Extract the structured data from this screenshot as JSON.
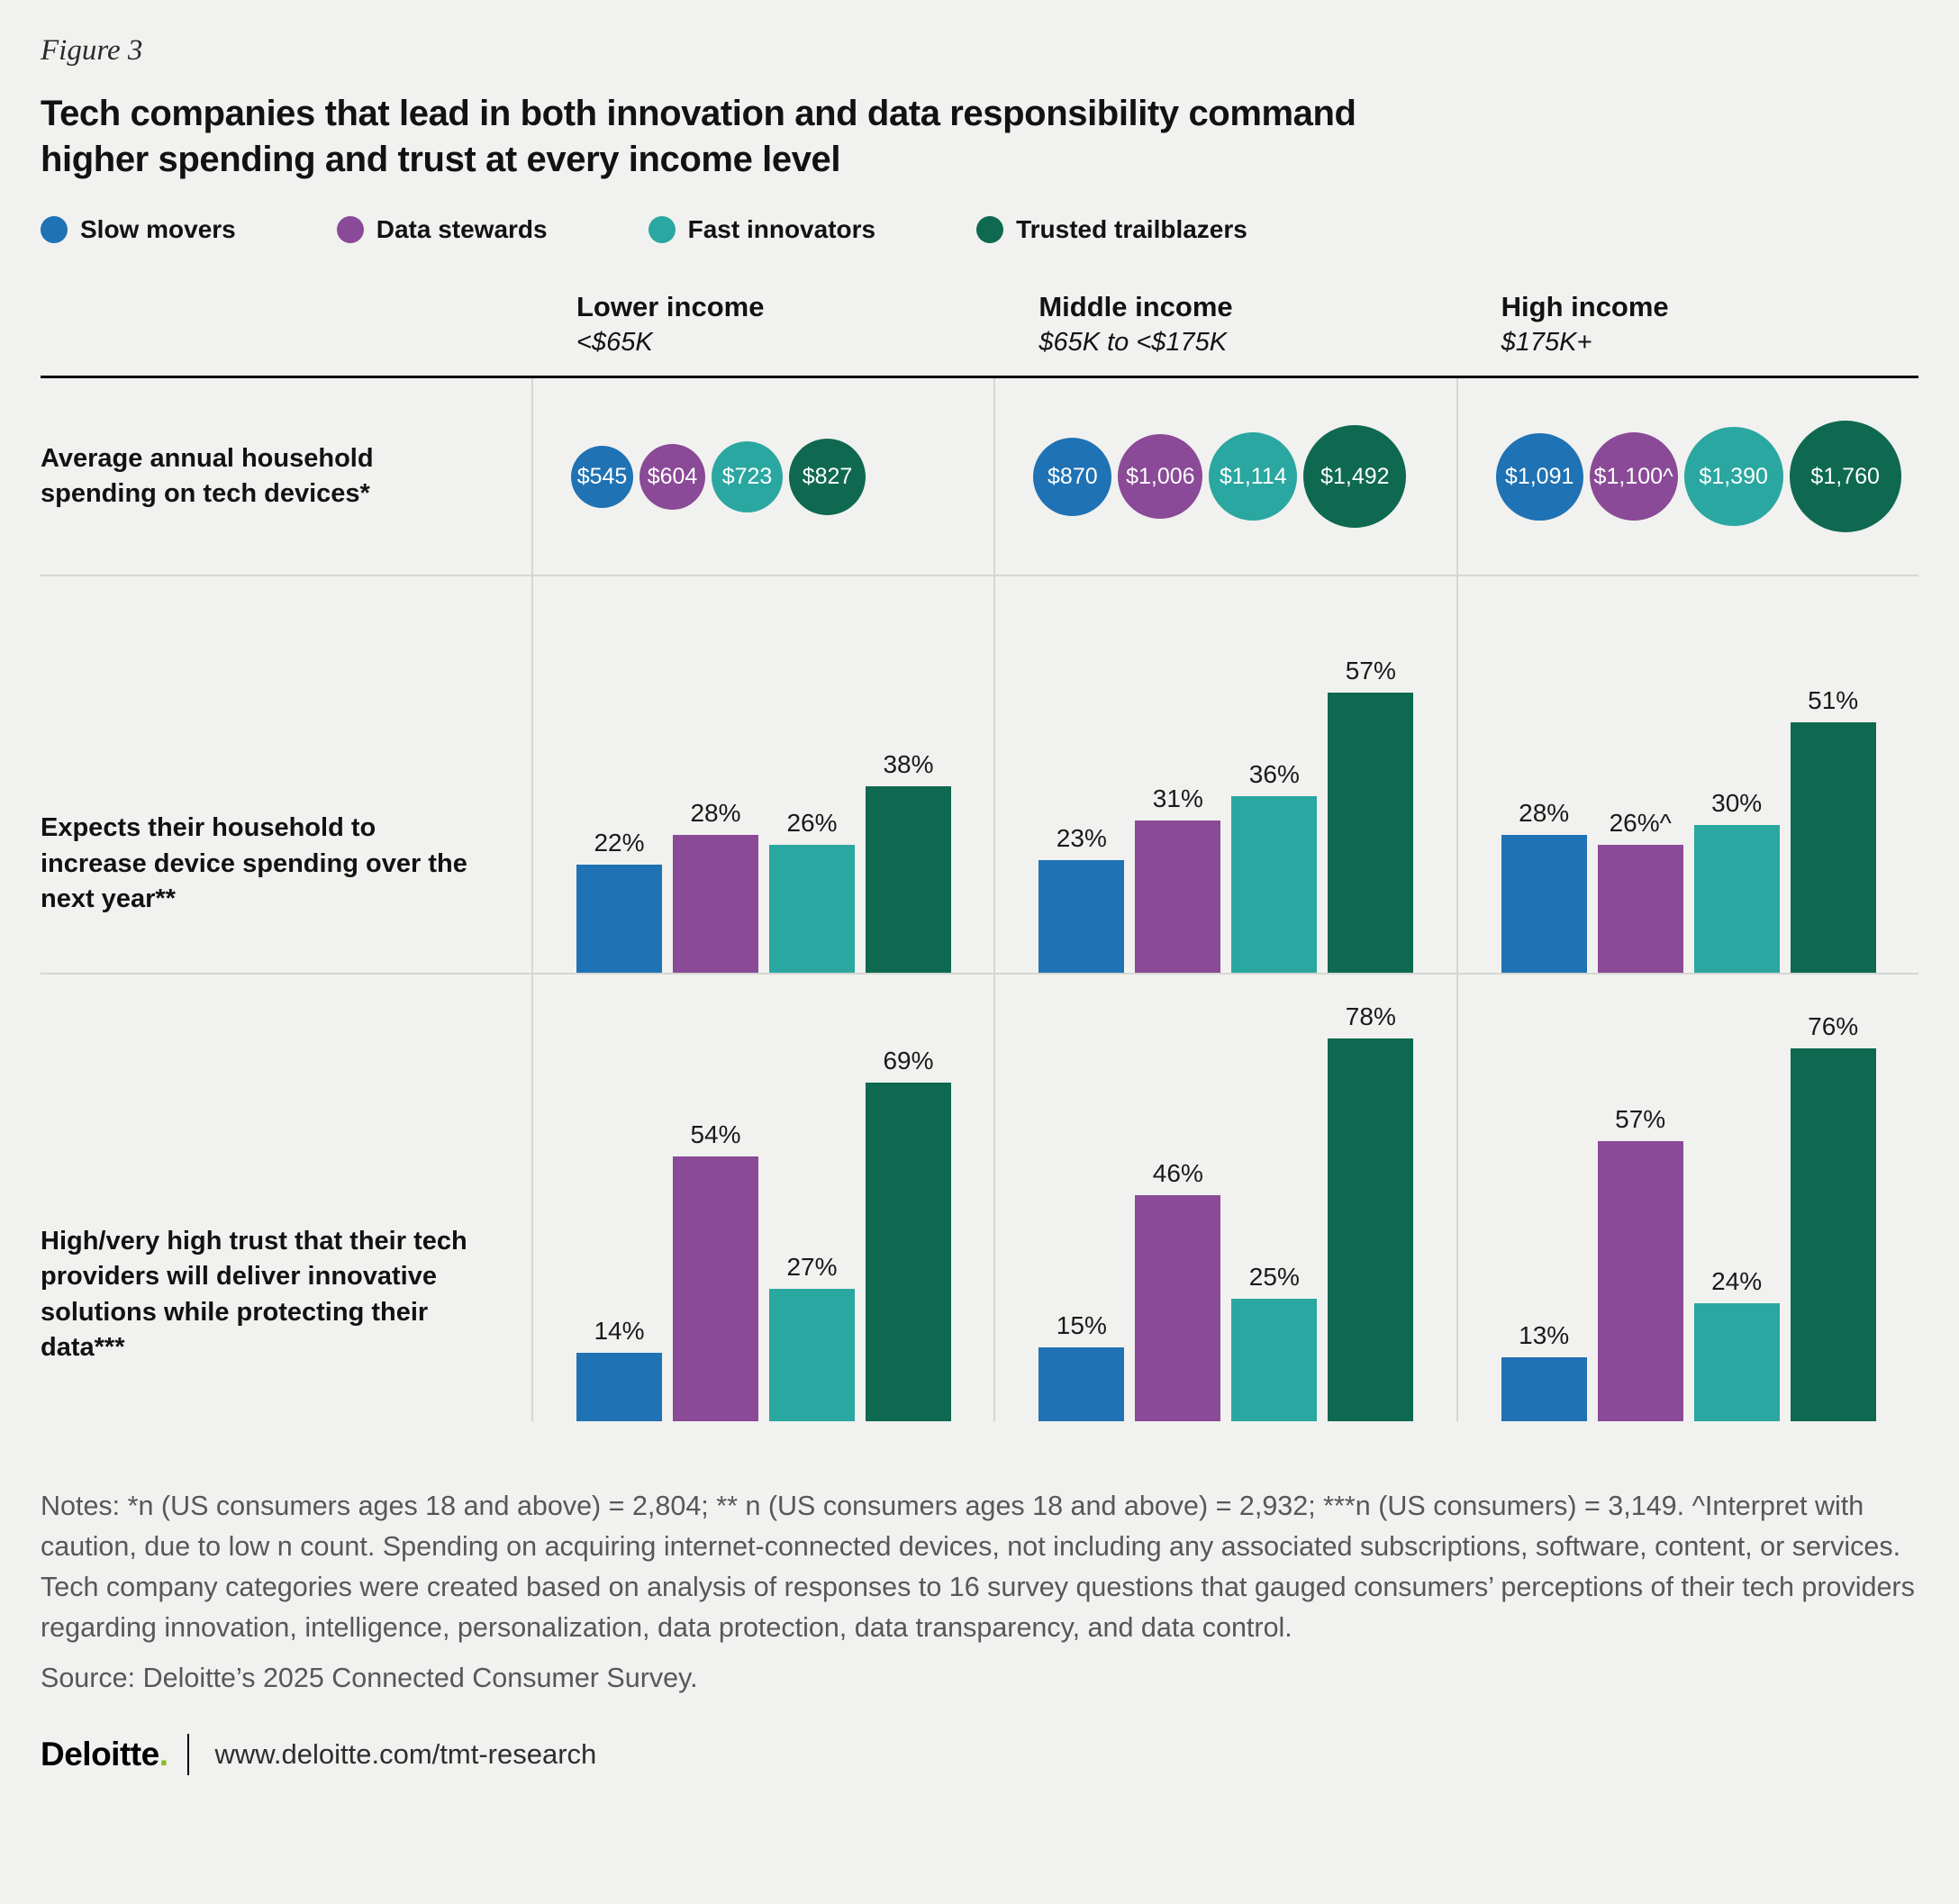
{
  "figure_label": "Figure 3",
  "title": "Tech companies that lead in both innovation and data responsibility command higher spending and trust at every income level",
  "legend": [
    {
      "label": "Slow movers",
      "color": "#1f72b4"
    },
    {
      "label": "Data stewards",
      "color": "#8a4a97"
    },
    {
      "label": "Fast innovators",
      "color": "#2aa7a0"
    },
    {
      "label": "Trusted trailblazers",
      "color": "#0e6950"
    }
  ],
  "columns": [
    {
      "title": "Lower income",
      "subtitle": "<$65K"
    },
    {
      "title": "Middle income",
      "subtitle": "$65K to <$175K"
    },
    {
      "title": "High income",
      "subtitle": "$175K+"
    }
  ],
  "rows": [
    {
      "label": "Average annual household spending on tech devices*"
    },
    {
      "label": "Expects their household to increase device spending over the next year**"
    },
    {
      "label": "High/very high trust that their tech providers will deliver innovative solutions while protecting their data***"
    }
  ],
  "chart_data": [
    {
      "type": "bubble",
      "metric": "Average annual household spending on tech devices*",
      "categories": [
        "Slow movers",
        "Data stewards",
        "Fast innovators",
        "Trusted trailblazers"
      ],
      "groups": [
        {
          "income": "Lower income <$65K",
          "labels": [
            "$545",
            "$604",
            "$723",
            "$827"
          ],
          "values": [
            545,
            604,
            723,
            827
          ]
        },
        {
          "income": "Middle income $65K to <$175K",
          "labels": [
            "$870",
            "$1,006",
            "$1,114",
            "$1,492"
          ],
          "values": [
            870,
            1006,
            1114,
            1492
          ]
        },
        {
          "income": "High income $175K+",
          "labels": [
            "$1,091",
            "$1,100^",
            "$1,390",
            "$1,760"
          ],
          "values": [
            1091,
            1100,
            1390,
            1760
          ]
        }
      ]
    },
    {
      "type": "bar",
      "metric": "Expects their household to increase device spending over the next year**",
      "unit": "%",
      "categories": [
        "Slow movers",
        "Data stewards",
        "Fast innovators",
        "Trusted trailblazers"
      ],
      "groups": [
        {
          "income": "Lower income <$65K",
          "labels": [
            "22%",
            "28%",
            "26%",
            "38%"
          ],
          "values": [
            22,
            28,
            26,
            38
          ]
        },
        {
          "income": "Middle income $65K to <$175K",
          "labels": [
            "23%",
            "31%",
            "36%",
            "57%"
          ],
          "values": [
            23,
            31,
            36,
            57
          ]
        },
        {
          "income": "High income $175K+",
          "labels": [
            "28%",
            "26%^",
            "30%",
            "51%"
          ],
          "values": [
            28,
            26,
            30,
            51
          ]
        }
      ]
    },
    {
      "type": "bar",
      "metric": "High/very high trust that their tech providers will deliver innovative solutions while protecting their data***",
      "unit": "%",
      "categories": [
        "Slow movers",
        "Data stewards",
        "Fast innovators",
        "Trusted trailblazers"
      ],
      "groups": [
        {
          "income": "Lower income <$65K",
          "labels": [
            "14%",
            "54%",
            "27%",
            "69%"
          ],
          "values": [
            14,
            54,
            27,
            69
          ]
        },
        {
          "income": "Middle income $65K to <$175K",
          "labels": [
            "15%",
            "46%",
            "25%",
            "78%"
          ],
          "values": [
            15,
            46,
            25,
            78
          ]
        },
        {
          "income": "High income $175K+",
          "labels": [
            "13%",
            "57%",
            "24%",
            "76%"
          ],
          "values": [
            13,
            57,
            24,
            76
          ]
        }
      ]
    }
  ],
  "notes": "Notes: *n (US consumers ages 18 and above) = 2,804; ** n (US consumers ages 18 and above) = 2,932; ***n (US consumers) = 3,149. ^Interpret with caution, due to low n count. Spending on acquiring internet-connected devices, not including any associated subscriptions, software, content, or services. Tech company categories were created based on analysis of responses to 16 survey questions that gauged consumers’ perceptions of their tech providers regarding innovation, intelligence, personalization, data protection, data transparency, and data control.",
  "source": "Source: Deloitte’s 2025 Connected Consumer Survey.",
  "footer": {
    "brand": "Deloitte",
    "brand_dot": ".",
    "url": "www.deloitte.com/tmt-research"
  }
}
